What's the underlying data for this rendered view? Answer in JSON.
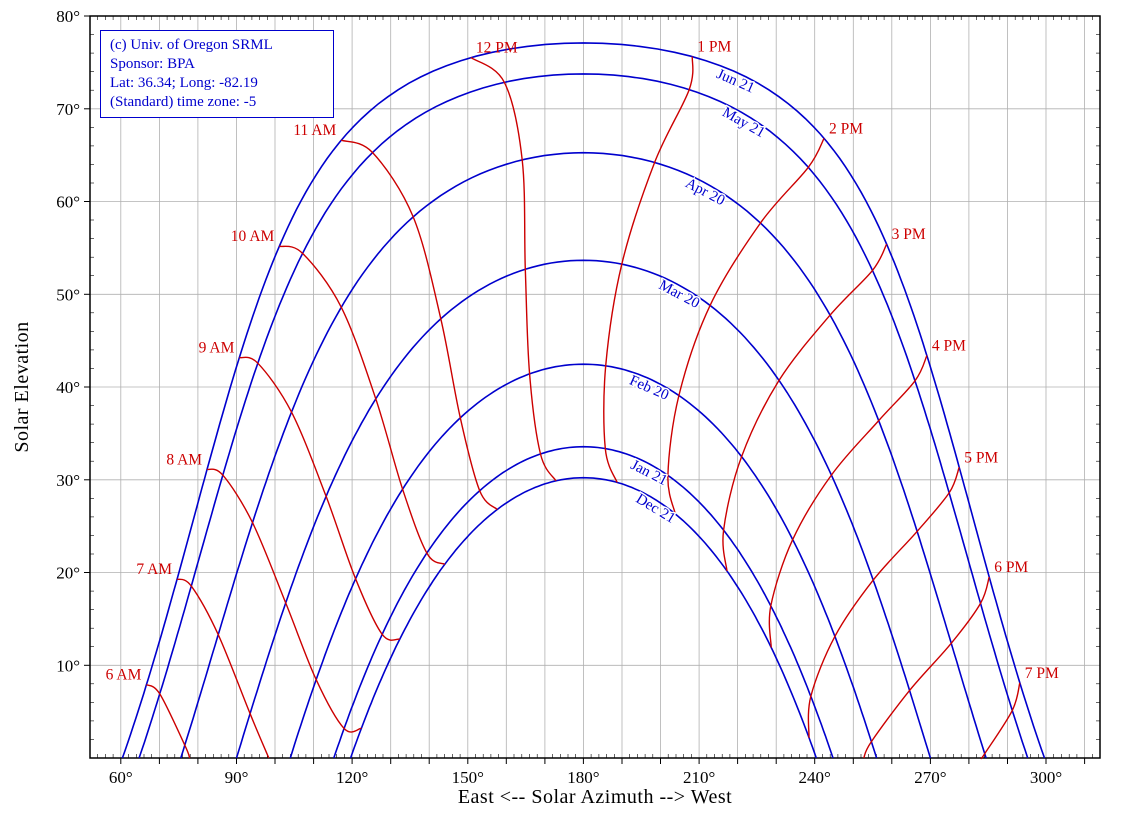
{
  "legend_box": {
    "lines": [
      "(c) Univ. of Oregon SRML",
      "Sponsor: BPA",
      "Lat: 36.34; Long: -82.19",
      "(Standard) time zone: -5"
    ]
  },
  "chart_data": {
    "type": "line",
    "xlabel": "East <-- Solar Azimuth --> West",
    "ylabel": "Solar Elevation",
    "xlim": [
      52,
      314
    ],
    "ylim": [
      0,
      80
    ],
    "x_grid_step": 10,
    "y_grid_step": 10,
    "grid": true,
    "legend_position": "top-left",
    "x_ticks": [
      {
        "value": 60,
        "label": "60°"
      },
      {
        "value": 90,
        "label": "90°"
      },
      {
        "value": 120,
        "label": "120°"
      },
      {
        "value": 150,
        "label": "150°"
      },
      {
        "value": 180,
        "label": "180°"
      },
      {
        "value": 210,
        "label": "210°"
      },
      {
        "value": 240,
        "label": "240°"
      },
      {
        "value": 270,
        "label": "270°"
      },
      {
        "value": 300,
        "label": "300°"
      }
    ],
    "y_ticks": [
      {
        "value": 10,
        "label": "10°"
      },
      {
        "value": 20,
        "label": "20°"
      },
      {
        "value": 30,
        "label": "30°"
      },
      {
        "value": 40,
        "label": "40°"
      },
      {
        "value": 50,
        "label": "50°"
      },
      {
        "value": 60,
        "label": "60°"
      },
      {
        "value": 70,
        "label": "70°"
      },
      {
        "value": 80,
        "label": "80°"
      }
    ],
    "site": {
      "latitude": 36.34,
      "longitude": -82.19,
      "utc_offset_hours": -5
    },
    "colors": {
      "date_curve": "#0000cd",
      "hour_line": "#cc0000",
      "grid": "#b0b0b0",
      "frame": "#000000",
      "tick_text": "#000000",
      "legend_text": "#0000cd"
    },
    "date_curves": [
      {
        "label": "Jun 21",
        "declination_deg": 23.44,
        "equation_of_time_min": -1.8,
        "label_azimuth_deg": 220.0,
        "peak_elevation_deg": 77.1
      },
      {
        "label": "May 21",
        "declination_deg": 20.1,
        "equation_of_time_min": 3.5,
        "label_azimuth_deg": 220.0,
        "peak_elevation_deg": 73.8
      },
      {
        "label": "Apr 20",
        "declination_deg": 11.6,
        "equation_of_time_min": 1.1,
        "label_azimuth_deg": 212.0,
        "peak_elevation_deg": 65.3
      },
      {
        "label": "Mar 20",
        "declination_deg": 0.0,
        "equation_of_time_min": -7.5,
        "label_azimuth_deg": 204.0,
        "peak_elevation_deg": 53.7
      },
      {
        "label": "Feb 20",
        "declination_deg": -11.2,
        "equation_of_time_min": -13.8,
        "label_azimuth_deg": 197.0,
        "peak_elevation_deg": 42.5
      },
      {
        "label": "Jan 21",
        "declination_deg": -20.1,
        "equation_of_time_min": -11.1,
        "label_azimuth_deg": 196.5,
        "peak_elevation_deg": 33.6
      },
      {
        "label": "Dec 21",
        "declination_deg": -23.44,
        "equation_of_time_min": 1.8,
        "label_azimuth_deg": 198.5,
        "peak_elevation_deg": 30.2
      }
    ],
    "hour_lines": [
      {
        "label": "6 AM",
        "clock_hour": 6
      },
      {
        "label": "7 AM",
        "clock_hour": 7
      },
      {
        "label": "8 AM",
        "clock_hour": 8
      },
      {
        "label": "9 AM",
        "clock_hour": 9
      },
      {
        "label": "10 AM",
        "clock_hour": 10
      },
      {
        "label": "11 AM",
        "clock_hour": 11
      },
      {
        "label": "12 PM",
        "clock_hour": 12
      },
      {
        "label": "1 PM",
        "clock_hour": 13
      },
      {
        "label": "2 PM",
        "clock_hour": 14
      },
      {
        "label": "3 PM",
        "clock_hour": 15
      },
      {
        "label": "4 PM",
        "clock_hour": 16
      },
      {
        "label": "5 PM",
        "clock_hour": 17
      },
      {
        "label": "6 PM",
        "clock_hour": 18
      },
      {
        "label": "7 PM",
        "clock_hour": 19
      }
    ]
  }
}
